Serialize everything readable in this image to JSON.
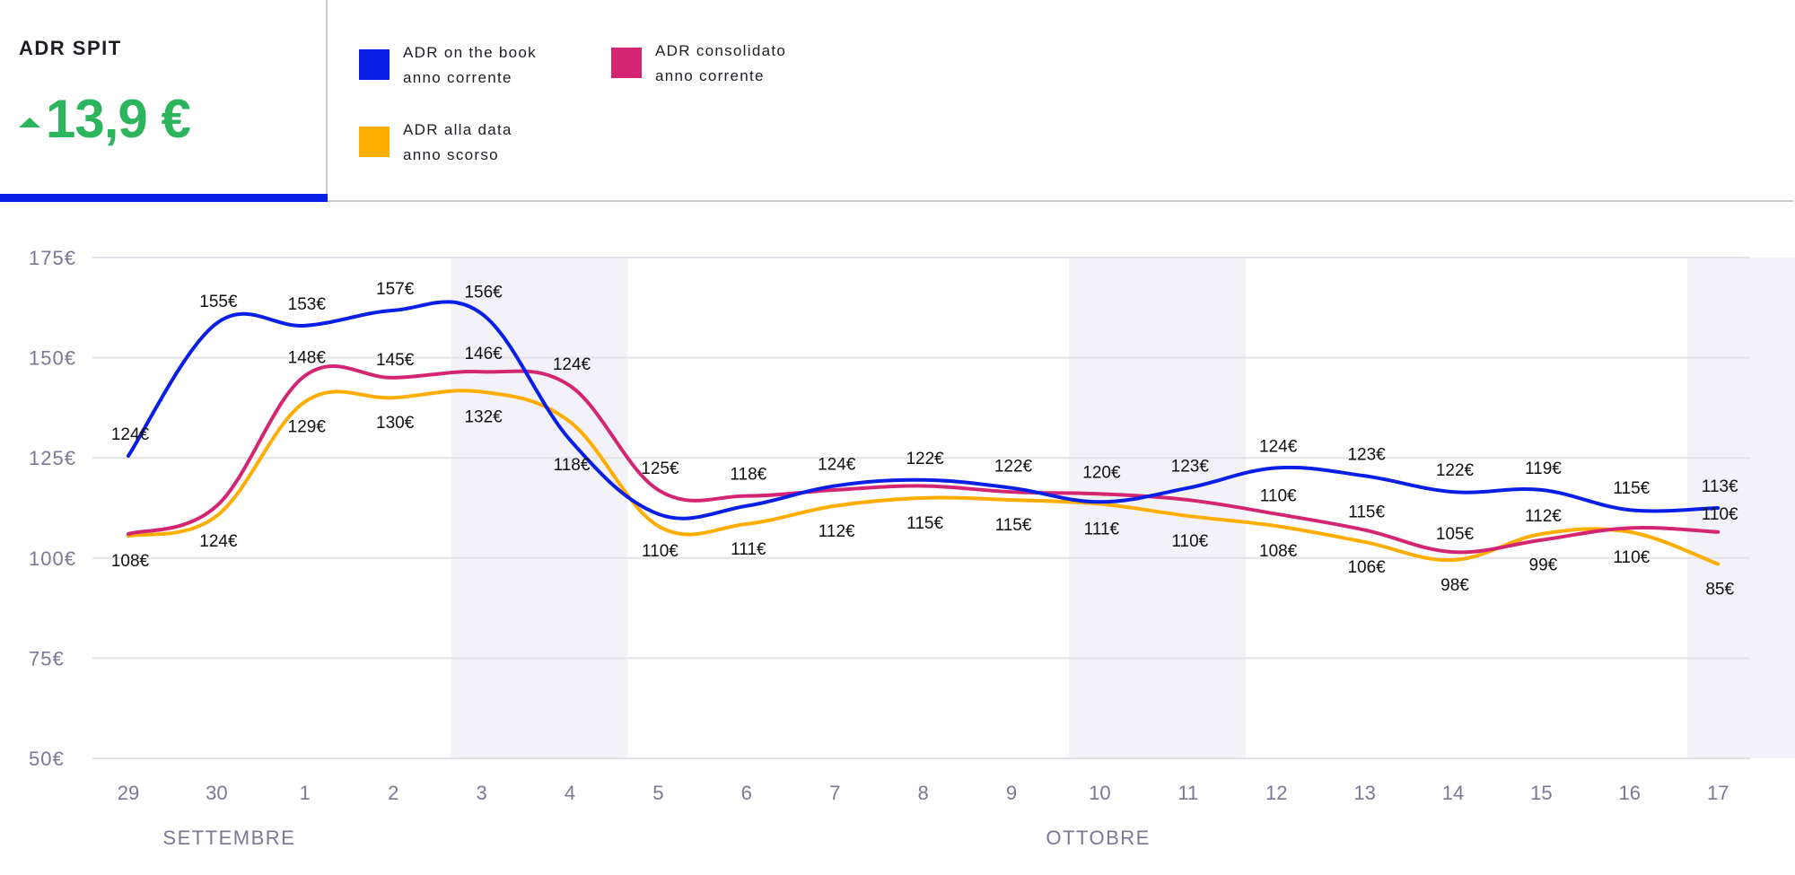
{
  "kpi": {
    "title": "ADR SPIT",
    "value": "13,9 €",
    "trend_icon": "triangle-up-icon",
    "trend": "up",
    "color": "#2db55d",
    "accent": "#0a1fe6"
  },
  "legend": [
    {
      "line1": "ADR on the book",
      "line2": "anno corrente",
      "color": "#0a1fe6"
    },
    {
      "line1": "ADR consolidato",
      "line2": "anno corrente",
      "color": "#d42573"
    },
    {
      "line1": "ADR alla data",
      "line2": "anno scorso",
      "color": "#ffad00"
    }
  ],
  "chart_data": {
    "type": "line",
    "title": "ADR SPIT",
    "xlabel": "",
    "ylabel": "",
    "categories": [
      "29",
      "30",
      "1",
      "2",
      "3",
      "4",
      "5",
      "6",
      "7",
      "8",
      "9",
      "10",
      "11",
      "12",
      "13",
      "14",
      "15",
      "16",
      "17"
    ],
    "month_labels": [
      {
        "label": "SETTEMBRE",
        "at_category": "30"
      },
      {
        "label": "OTTOBRE",
        "at_category": "10"
      }
    ],
    "ylim": [
      50,
      175
    ],
    "yticks": [
      175,
      150,
      125,
      100,
      75,
      50
    ],
    "ytick_labels": [
      "175€",
      "150€",
      "125€",
      "100€",
      "75€",
      "50€"
    ],
    "grid": true,
    "legend_position": "top",
    "shaded_categories": [
      [
        "3",
        "4"
      ],
      [
        "10",
        "11"
      ],
      [
        "17"
      ]
    ],
    "shade_color": "#f2f2f8",
    "series": [
      {
        "name": "ADR on the book anno corrente",
        "color": "#0a1fe6",
        "values": [
          125.5,
          158.6,
          158.0,
          161.8,
          161.0,
          129.5,
          111.0,
          113.0,
          118.0,
          119.5,
          117.5,
          114.0,
          117.5,
          122.5,
          120.5,
          116.5,
          117.0,
          112.0,
          112.5
        ]
      },
      {
        "name": "ADR consolidato anno corrente",
        "color": "#d42573",
        "values": [
          106.0,
          113.0,
          145.5,
          145.0,
          146.5,
          143.0,
          117.0,
          115.5,
          117.0,
          118.0,
          116.5,
          116.0,
          114.5,
          111.0,
          107.0,
          101.5,
          104.5,
          107.5,
          106.5
        ]
      },
      {
        "name": "ADR alla data anno scorso",
        "color": "#ffad00",
        "values": [
          105.5,
          110.5,
          139.0,
          140.0,
          141.5,
          134.0,
          108.0,
          108.5,
          113.0,
          115.0,
          114.5,
          113.5,
          110.5,
          108.0,
          104.0,
          99.5,
          106.0,
          106.5,
          98.5
        ]
      }
    ],
    "data_labels": [
      {
        "category": "29",
        "top": "124€",
        "middle": "",
        "bottom": "108€"
      },
      {
        "category": "30",
        "top": "155€",
        "middle": "",
        "bottom": "124€"
      },
      {
        "category": "1",
        "top": "153€",
        "middle": "148€",
        "bottom": "129€"
      },
      {
        "category": "2",
        "top": "157€",
        "middle": "145€",
        "bottom": "130€"
      },
      {
        "category": "3",
        "top": "156€",
        "middle": "146€",
        "bottom": "132€"
      },
      {
        "category": "4",
        "top": "124€",
        "middle": "",
        "bottom": "118€"
      },
      {
        "category": "5",
        "top": "125€",
        "middle": "",
        "bottom": "110€"
      },
      {
        "category": "6",
        "top": "118€",
        "middle": "",
        "bottom": "111€"
      },
      {
        "category": "7",
        "top": "124€",
        "middle": "",
        "bottom": "112€"
      },
      {
        "category": "8",
        "top": "122€",
        "middle": "",
        "bottom": "115€"
      },
      {
        "category": "9",
        "top": "122€",
        "middle": "",
        "bottom": "115€"
      },
      {
        "category": "10",
        "top": "120€",
        "middle": "",
        "bottom": "111€"
      },
      {
        "category": "11",
        "top": "123€",
        "middle": "",
        "bottom": "110€"
      },
      {
        "category": "12",
        "top": "124€",
        "middle": "110€",
        "bottom": "108€"
      },
      {
        "category": "13",
        "top": "123€",
        "middle": "115€",
        "bottom": "106€"
      },
      {
        "category": "14",
        "top": "122€",
        "middle": "105€",
        "bottom": "98€"
      },
      {
        "category": "15",
        "top": "119€",
        "middle": "112€",
        "bottom": "99€"
      },
      {
        "category": "16",
        "top": "115€",
        "middle": "",
        "bottom": "110€"
      },
      {
        "category": "17",
        "top": "113€",
        "middle": "110€",
        "bottom": "85€"
      }
    ]
  }
}
